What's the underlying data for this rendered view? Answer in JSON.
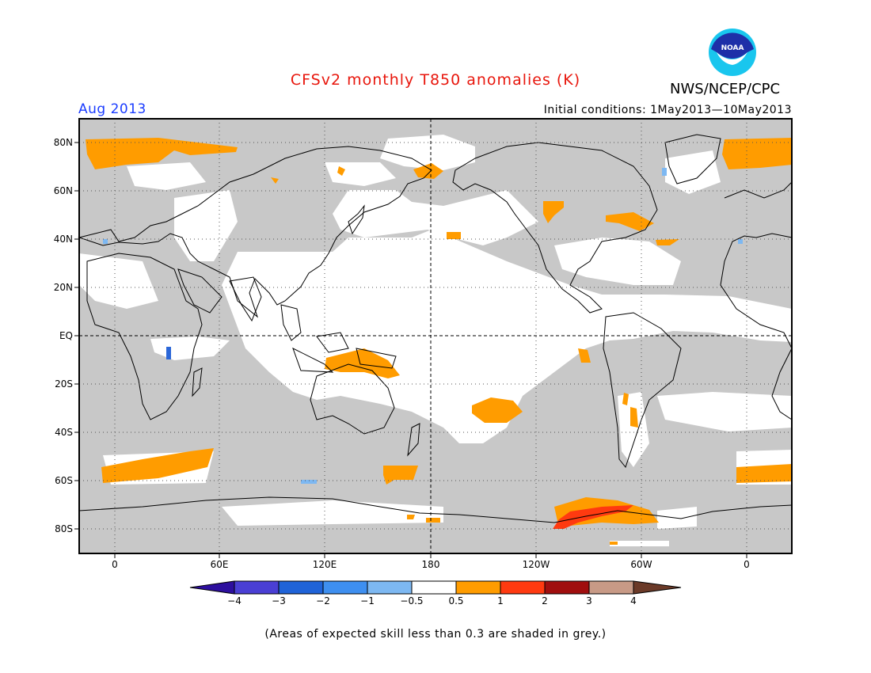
{
  "title": "CFSv2 monthly T850 anomalies (K)",
  "agency": "NWS/NCEP/CPC",
  "period": "Aug 2013",
  "initial_conditions": "Initial conditions: 1May2013—10May2013",
  "note": "(Areas of expected skill less than 0.3 are shaded in grey.)",
  "latitude_labels": [
    "80N",
    "60N",
    "40N",
    "20N",
    "EQ",
    "20S",
    "40S",
    "60S",
    "80S"
  ],
  "longitude_labels": [
    "0",
    "60E",
    "120E",
    "180",
    "120W",
    "60W",
    "0"
  ],
  "colorbar": {
    "labels": [
      "−4",
      "−3",
      "−2",
      "−1",
      "−0.5",
      "0.5",
      "1",
      "2",
      "3",
      "4"
    ],
    "colors": [
      "#2d0f9e",
      "#4a3fd4",
      "#1f63d8",
      "#3e8ff0",
      "#7db8f2",
      "#ffffff",
      "#ff9c00",
      "#ff3a10",
      "#a00e0e",
      "#c89a86",
      "#6b3a28"
    ]
  },
  "colors": {
    "skill_grey": "#c8c8c8",
    "anomaly_orange": "#ff9c00",
    "anomaly_red": "#ff3a10",
    "anomaly_light_blue": "#7db8f2",
    "coast": "#000000"
  },
  "logo": {
    "text": "NOAA",
    "icon": "noaa-logo-icon"
  }
}
